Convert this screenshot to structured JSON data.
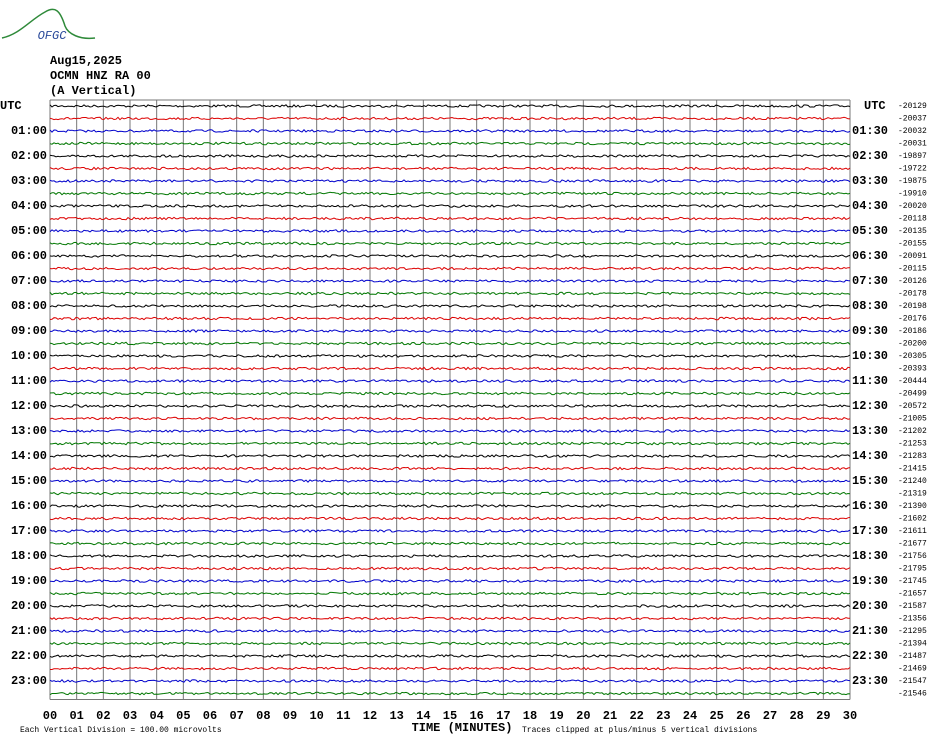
{
  "logo": "OFGC",
  "header": {
    "date": "Aug15,2025",
    "station": "OCMN HNZ RA 00",
    "component": "(A Vertical)"
  },
  "left_labels": [
    "UTC",
    "01:00",
    "02:00",
    "03:00",
    "04:00",
    "05:00",
    "06:00",
    "07:00",
    "08:00",
    "09:00",
    "10:00",
    "11:00",
    "12:00",
    "13:00",
    "14:00",
    "15:00",
    "16:00",
    "17:00",
    "18:00",
    "19:00",
    "20:00",
    "21:00",
    "22:00",
    "23:00"
  ],
  "right_labels": [
    "UTC",
    "01:30",
    "02:30",
    "03:30",
    "04:30",
    "05:30",
    "06:30",
    "07:30",
    "08:30",
    "09:30",
    "10:30",
    "11:30",
    "12:30",
    "13:30",
    "14:30",
    "15:30",
    "16:30",
    "17:30",
    "18:30",
    "19:30",
    "20:30",
    "21:30",
    "22:30",
    "23:30"
  ],
  "trace_offsets": [
    "-20129",
    "-20037",
    "-20032",
    "-20031",
    "-19897",
    "-19722",
    "-19875",
    "-19910",
    "-20020",
    "-20118",
    "-20135",
    "-20155",
    "-20091",
    "-20115",
    "-20126",
    "-20178",
    "-20198",
    "-20176",
    "-20186",
    "-20200",
    "-20305",
    "-20393",
    "-20444",
    "-20499",
    "-20572",
    "-21005",
    "-21202",
    "-21253",
    "-21283",
    "-21415",
    "-21240",
    "-21319",
    "-21390",
    "-21602",
    "-21611",
    "-21677",
    "-21756",
    "-21795",
    "-21745",
    "-21657",
    "-21587",
    "-21356",
    "-21295",
    "-21394",
    "-21487",
    "-21469",
    "-21547",
    "-21546"
  ],
  "minute_labels": [
    "00",
    "01",
    "02",
    "03",
    "04",
    "05",
    "06",
    "07",
    "08",
    "09",
    "10",
    "11",
    "12",
    "13",
    "14",
    "15",
    "16",
    "17",
    "18",
    "19",
    "20",
    "21",
    "22",
    "23",
    "24",
    "25",
    "26",
    "27",
    "28",
    "29",
    "30"
  ],
  "x_axis_label": "TIME (MINUTES)",
  "footer": {
    "scale": "Each Vertical Division =  100.00 microvolts",
    "clip": "Traces clipped at plus/minus 5 vertical divisions"
  }
}
